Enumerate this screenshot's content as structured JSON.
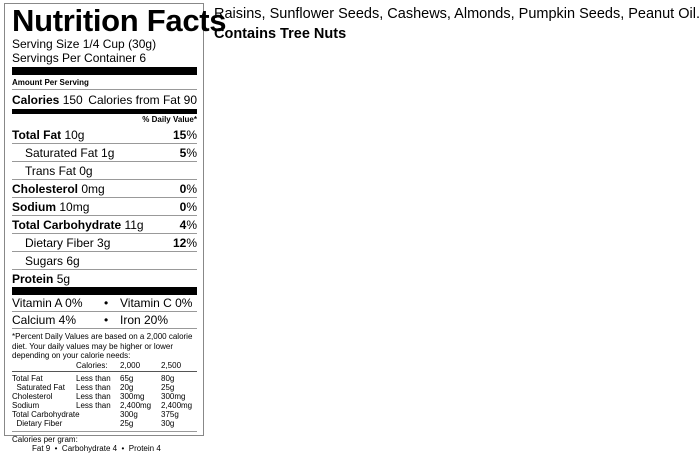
{
  "label": {
    "title": "Nutrition Facts",
    "serving_size": "Serving Size 1/4 Cup (30g)",
    "servings_per_container": "Servings Per Container 6",
    "amount_per_serving": "Amount Per Serving",
    "calories_label": "Calories",
    "calories_value": "150",
    "calories_from_fat": "Calories from Fat 90",
    "daily_value_header": "% Daily Value*",
    "nutrients": [
      {
        "name": "Total Fat",
        "amount": "10g",
        "dv": "15",
        "bold": true
      },
      {
        "name": "Saturated Fat 1g",
        "amount": "",
        "dv": "5",
        "bold": false
      },
      {
        "name": "Trans Fat 0g",
        "amount": "",
        "dv": "",
        "bold": false
      },
      {
        "name": "Cholesterol",
        "amount": "0mg",
        "dv": "0",
        "bold": true
      },
      {
        "name": "Sodium",
        "amount": "10mg",
        "dv": "0",
        "bold": true
      },
      {
        "name": "Total Carbohydrate",
        "amount": "11g",
        "dv": "4",
        "bold": true
      },
      {
        "name": "Dietary Fiber 3g",
        "amount": "",
        "dv": "12",
        "bold": false
      },
      {
        "name": "Sugars 6g",
        "amount": "",
        "dv": "",
        "bold": false
      },
      {
        "name": "Protein",
        "amount": "5g",
        "dv": "",
        "bold": true
      }
    ],
    "percent_sign": "%",
    "vitamins": [
      {
        "left": "Vitamin A 0%",
        "right": "Vitamin C 0%"
      },
      {
        "left": "Calcium 4%",
        "right": "Iron 20%"
      }
    ],
    "bullet": "•",
    "footnote": "*Percent Daily Values are based on a 2,000 calorie diet. Your daily values may be higher or lower depending on your calorie needs:",
    "table_header": [
      "",
      "Calories:",
      "2,000",
      "2,500"
    ],
    "table_rows": [
      [
        "Total Fat",
        "Less than",
        "65g",
        "80g"
      ],
      [
        "  Saturated Fat",
        "Less than",
        "20g",
        "25g"
      ],
      [
        "Cholesterol",
        "Less than",
        "300mg",
        "300mg"
      ],
      [
        "Sodium",
        "Less than",
        "2,400mg",
        "2,400mg"
      ],
      [
        "Total Carbohydrate",
        "",
        "300g",
        "375g"
      ],
      [
        "  Dietary Fiber",
        "",
        "25g",
        "30g"
      ]
    ],
    "calories_per_gram": "Calories per gram:",
    "calories_per_gram_values": "Fat 9  •  Carbohydrate 4  •  Protein 4"
  },
  "ingredients": "Raisins, Sunflower Seeds, Cashews, Almonds, Pumpkin Seeds, Peanut Oil.",
  "allergen": "Contains Tree Nuts"
}
